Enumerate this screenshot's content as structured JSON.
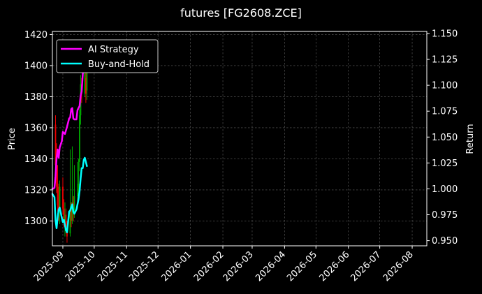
{
  "chart_data": {
    "type": "line",
    "title": "futures [FG2608.ZCE]",
    "xlabel": "",
    "ylabel": "Price",
    "y2label": "Return",
    "x_ticks": [
      "2025-09",
      "2025-10",
      "2025-11",
      "2025-12",
      "2026-01",
      "2026-02",
      "2026-03",
      "2026-04",
      "2026-05",
      "2026-06",
      "2026-07",
      "2026-08"
    ],
    "xlim": [
      "2025-08-22",
      "2026-08-15"
    ],
    "ylim": [
      1284,
      1422
    ],
    "y_ticks": [
      1300,
      1320,
      1340,
      1360,
      1380,
      1400,
      1420
    ],
    "y2lim": [
      0.945,
      1.152
    ],
    "y2_ticks": [
      "0.950",
      "0.975",
      "1.000",
      "1.025",
      "1.050",
      "1.075",
      "1.100",
      "1.125",
      "1.150"
    ],
    "grid": true,
    "legend_position": "top-left",
    "colors": {
      "background": "#000000",
      "ai": "#ff00ff",
      "bh": "#00ffff",
      "up": "#00aa00",
      "down": "#ee0000"
    },
    "candles": [
      {
        "date": "2025-08-22",
        "open": 1318,
        "high": 1322,
        "low": 1310,
        "close": 1316
      },
      {
        "date": "2025-08-25",
        "open": 1362,
        "high": 1368,
        "low": 1330,
        "close": 1336
      },
      {
        "date": "2025-08-26",
        "open": 1336,
        "high": 1350,
        "low": 1318,
        "close": 1322
      },
      {
        "date": "2025-08-27",
        "open": 1322,
        "high": 1336,
        "low": 1306,
        "close": 1310
      },
      {
        "date": "2025-08-28",
        "open": 1310,
        "high": 1324,
        "low": 1300,
        "close": 1306
      },
      {
        "date": "2025-08-29",
        "open": 1306,
        "high": 1326,
        "low": 1298,
        "close": 1322
      },
      {
        "date": "2025-09-01",
        "open": 1322,
        "high": 1328,
        "low": 1304,
        "close": 1308
      },
      {
        "date": "2025-09-02",
        "open": 1308,
        "high": 1314,
        "low": 1296,
        "close": 1300
      },
      {
        "date": "2025-09-03",
        "open": 1300,
        "high": 1312,
        "low": 1290,
        "close": 1304
      },
      {
        "date": "2025-09-04",
        "open": 1304,
        "high": 1308,
        "low": 1292,
        "close": 1296
      },
      {
        "date": "2025-09-05",
        "open": 1296,
        "high": 1300,
        "low": 1286,
        "close": 1290
      },
      {
        "date": "2025-09-08",
        "open": 1292,
        "high": 1346,
        "low": 1290,
        "close": 1308
      },
      {
        "date": "2025-09-09",
        "open": 1308,
        "high": 1312,
        "low": 1296,
        "close": 1300
      },
      {
        "date": "2025-09-10",
        "open": 1300,
        "high": 1348,
        "low": 1298,
        "close": 1312
      },
      {
        "date": "2025-09-11",
        "open": 1312,
        "high": 1316,
        "low": 1300,
        "close": 1306
      },
      {
        "date": "2025-09-12",
        "open": 1306,
        "high": 1336,
        "low": 1302,
        "close": 1316
      },
      {
        "date": "2025-09-15",
        "open": 1316,
        "high": 1338,
        "low": 1308,
        "close": 1318
      },
      {
        "date": "2025-09-16",
        "open": 1318,
        "high": 1340,
        "low": 1314,
        "close": 1324
      },
      {
        "date": "2025-09-17",
        "open": 1338,
        "high": 1372,
        "low": 1332,
        "close": 1368
      },
      {
        "date": "2025-09-18",
        "open": 1368,
        "high": 1394,
        "low": 1362,
        "close": 1388
      },
      {
        "date": "2025-09-19",
        "open": 1388,
        "high": 1392,
        "low": 1376,
        "close": 1382
      },
      {
        "date": "2025-09-22",
        "open": 1382,
        "high": 1414,
        "low": 1380,
        "close": 1408
      },
      {
        "date": "2025-09-23",
        "open": 1392,
        "high": 1402,
        "low": 1376,
        "close": 1382
      },
      {
        "date": "2025-09-24",
        "open": 1384,
        "high": 1400,
        "low": 1378,
        "close": 1396
      }
    ],
    "series": [
      {
        "name": "AI Strategy",
        "axis": "right",
        "x": [
          "2025-08-22",
          "2025-08-24",
          "2025-08-25",
          "2025-08-26",
          "2025-08-27",
          "2025-08-28",
          "2025-08-29",
          "2025-08-31",
          "2025-09-01",
          "2025-09-02",
          "2025-09-03",
          "2025-09-05",
          "2025-09-07",
          "2025-09-08",
          "2025-09-09",
          "2025-09-10",
          "2025-09-11",
          "2025-09-12",
          "2025-09-14",
          "2025-09-15",
          "2025-09-16",
          "2025-09-17",
          "2025-09-18",
          "2025-09-19",
          "2025-09-20",
          "2025-09-21",
          "2025-09-22"
        ],
        "values": [
          1.0,
          1.001,
          1.012,
          1.03,
          1.038,
          1.03,
          1.04,
          1.046,
          1.055,
          1.054,
          1.053,
          1.06,
          1.068,
          1.069,
          1.077,
          1.078,
          1.068,
          1.067,
          1.067,
          1.076,
          1.078,
          1.08,
          1.09,
          1.094,
          1.11,
          1.122,
          1.14
        ]
      },
      {
        "name": "Buy-and-Hold",
        "axis": "right",
        "x": [
          "2025-08-22",
          "2025-08-24",
          "2025-08-25",
          "2025-08-26",
          "2025-08-27",
          "2025-08-28",
          "2025-08-29",
          "2025-08-31",
          "2025-09-01",
          "2025-09-02",
          "2025-09-03",
          "2025-09-04",
          "2025-09-05",
          "2025-09-07",
          "2025-09-08",
          "2025-09-09",
          "2025-09-10",
          "2025-09-11",
          "2025-09-12",
          "2025-09-14",
          "2025-09-15",
          "2025-09-16",
          "2025-09-17",
          "2025-09-18",
          "2025-09-19",
          "2025-09-20",
          "2025-09-21",
          "2025-09-22",
          "2025-09-24"
        ],
        "values": [
          0.995,
          0.992,
          0.97,
          0.962,
          0.972,
          0.98,
          0.982,
          0.972,
          0.968,
          0.97,
          0.965,
          0.96,
          0.958,
          0.978,
          0.979,
          0.982,
          0.985,
          0.978,
          0.976,
          0.98,
          0.985,
          0.99,
          0.998,
          1.01,
          1.02,
          1.02,
          1.028,
          1.03,
          1.022
        ]
      }
    ]
  }
}
